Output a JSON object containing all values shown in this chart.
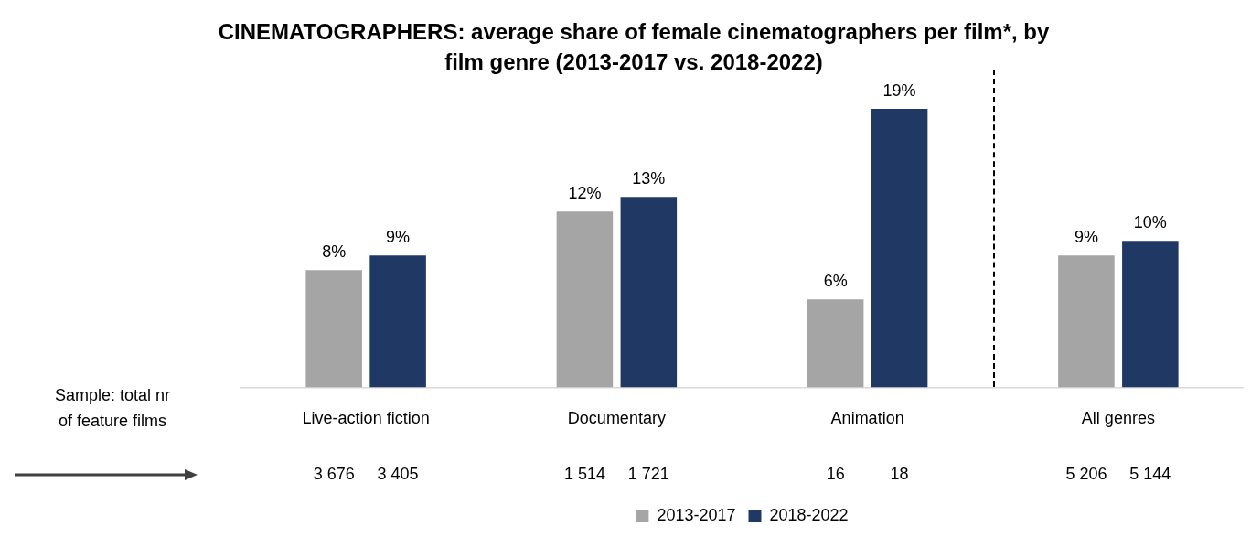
{
  "chart_data": {
    "type": "bar",
    "title": "CINEMATOGRAPHERS: average share of female cinematographers per film*, by film genre (2013-2017 vs. 2018-2022)",
    "categories": [
      "Live-action fiction",
      "Documentary",
      "Animation",
      "All genres"
    ],
    "series": [
      {
        "name": "2013-2017",
        "color": "#a5a5a5",
        "values": [
          8,
          12,
          6,
          9
        ],
        "value_labels": [
          "8%",
          "12%",
          "6%",
          "9%"
        ]
      },
      {
        "name": "2018-2022",
        "color": "#203864",
        "values": [
          9,
          13,
          19,
          10
        ],
        "value_labels": [
          "9%",
          "13%",
          "19%",
          "10%"
        ]
      }
    ],
    "legend": "bottom",
    "grid": false,
    "tick_labels": "x",
    "annotations": [
      "Sample: total nr of feature films",
      "3 676",
      "3 405",
      "1 514",
      "1 721",
      "16",
      "18",
      "5 206",
      "5 144"
    ]
  }
}
